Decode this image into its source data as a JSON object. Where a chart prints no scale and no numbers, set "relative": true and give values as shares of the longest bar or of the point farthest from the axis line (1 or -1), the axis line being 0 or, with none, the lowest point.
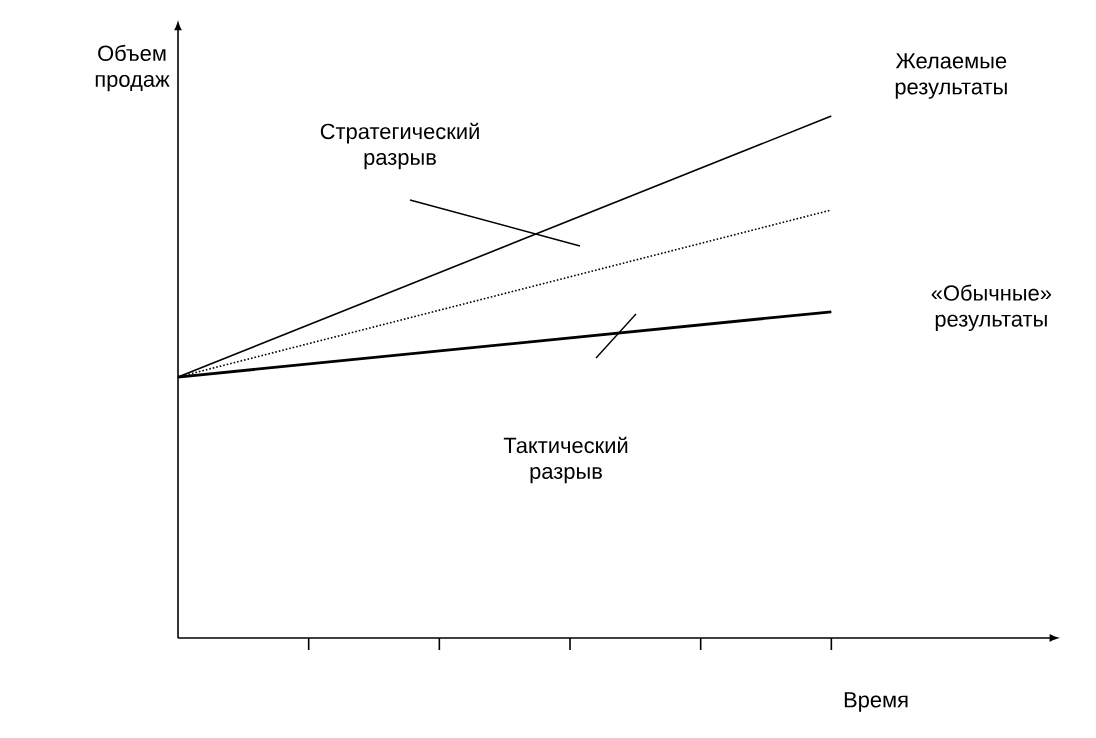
{
  "chart_data": {
    "type": "line",
    "relative": true,
    "xlabel": "Время",
    "ylabel": "Объем продаж",
    "categories": [
      null,
      null,
      null,
      null,
      null,
      null
    ],
    "marker": "none",
    "grid": false,
    "series": [
      {
        "name": "Желаемые результаты",
        "color": "#000000",
        "line_style": "solid",
        "values": [
          0.5,
          null,
          null,
          null,
          null,
          1
        ]
      },
      {
        "color": "#000000",
        "line_style": "dotted",
        "values": [
          0.5,
          null,
          null,
          null,
          null,
          0.82
        ]
      },
      {
        "name": "«Обычные» результаты",
        "color": "#000000",
        "line_style": "solid",
        "values": [
          0.5,
          null,
          null,
          null,
          null,
          0.625
        ]
      }
    ],
    "annotations": [
      "Стратегический разрыв",
      "Тактический разрыв"
    ]
  }
}
